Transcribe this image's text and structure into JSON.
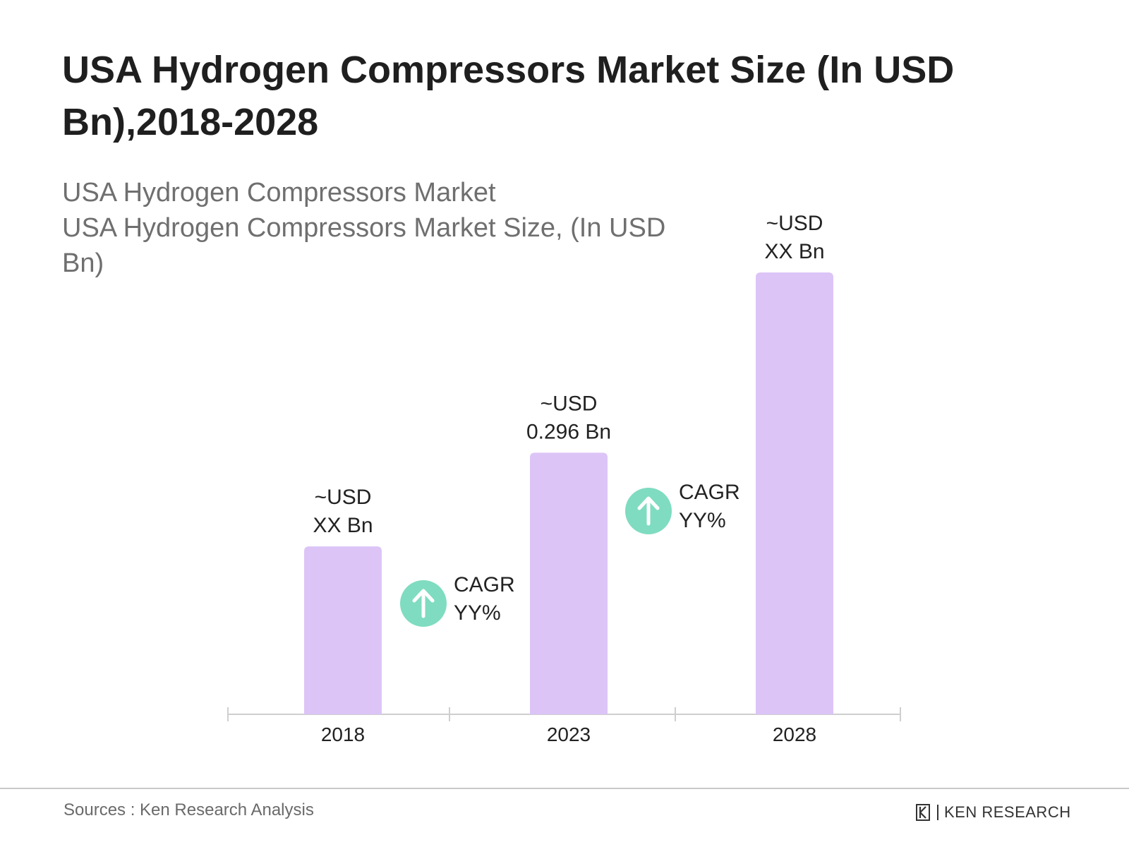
{
  "title": "USA Hydrogen Compressors Market Size (In USD Bn),2018-2028",
  "subtitle_lines": [
    "USA Hydrogen Compressors Market",
    "USA Hydrogen Compressors Market Size, (In USD Bn)"
  ],
  "chart_data": {
    "type": "bar",
    "categories": [
      "2018",
      "2023",
      "2028"
    ],
    "values": [
      0.19,
      0.296,
      0.5
    ],
    "value_labels": [
      [
        "~USD",
        "XX Bn"
      ],
      [
        "~USD",
        "0.296 Bn"
      ],
      [
        "~USD",
        "XX Bn"
      ]
    ],
    "cagr_annotations": [
      {
        "between": [
          "2018",
          "2023"
        ],
        "lines": [
          "CAGR",
          "YY%"
        ]
      },
      {
        "between": [
          "2023",
          "2028"
        ],
        "lines": [
          "CAGR",
          "YY%"
        ]
      }
    ],
    "ylim": [
      0,
      0.5
    ],
    "grid": false,
    "bar_color": "#dcc4f7",
    "axis_color": "#cfcfcf",
    "cagr_icon_color": "#7fdcc0",
    "cagr_icon": "arrow-up-icon"
  },
  "footer": {
    "source": "Sources : Ken Research Analysis",
    "brand": "KEN RESEARCH"
  }
}
